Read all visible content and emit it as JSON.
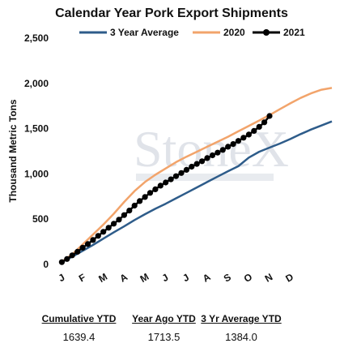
{
  "chart_data": {
    "type": "line",
    "title": "Calendar Year Pork Export Shipments",
    "ylabel": "Thousand Metric Tons",
    "xlabel": "",
    "ylim": [
      0,
      2500
    ],
    "yticks": [
      "0",
      "500",
      "1,000",
      "1,500",
      "2,000",
      "2,500"
    ],
    "ytick_values": [
      0,
      500,
      1000,
      1500,
      2000,
      2500
    ],
    "month_labels": [
      "J",
      "F",
      "M",
      "A",
      "M",
      "J",
      "J",
      "A",
      "S",
      "O",
      "N",
      "D"
    ],
    "legend_position": "top",
    "grid": false,
    "watermark": "StoneX",
    "series": [
      {
        "name": "3 Year Average",
        "color": "#2e5c8a",
        "marker": "none",
        "x": [
          1,
          3,
          5,
          7,
          9,
          11,
          13,
          15,
          17,
          19,
          21,
          23,
          25,
          27,
          29,
          31,
          33,
          35,
          37,
          39,
          41,
          43,
          45,
          47,
          49,
          51,
          53
        ],
        "y": [
          25,
          85,
          150,
          215,
          285,
          355,
          420,
          490,
          555,
          615,
          670,
          730,
          790,
          850,
          910,
          970,
          1030,
          1085,
          1180,
          1245,
          1290,
          1335,
          1385,
          1440,
          1490,
          1535,
          1580
        ]
      },
      {
        "name": "2020",
        "color": "#f2a46b",
        "marker": "none",
        "x": [
          1,
          3,
          5,
          7,
          9,
          11,
          13,
          15,
          17,
          19,
          21,
          23,
          25,
          27,
          29,
          31,
          33,
          35,
          37,
          39,
          41,
          43,
          45,
          47,
          49,
          51,
          53
        ],
        "y": [
          30,
          110,
          220,
          330,
          440,
          560,
          690,
          810,
          910,
          990,
          1060,
          1130,
          1190,
          1245,
          1300,
          1355,
          1410,
          1470,
          1530,
          1590,
          1650,
          1715,
          1780,
          1840,
          1890,
          1930,
          1950
        ]
      },
      {
        "name": "2021",
        "color": "#000000",
        "marker": "circle",
        "x": [
          1,
          2,
          3,
          4,
          5,
          6,
          7,
          8,
          9,
          10,
          11,
          12,
          13,
          14,
          15,
          16,
          17,
          18,
          19,
          20,
          21,
          22,
          23,
          24,
          25,
          26,
          27,
          28,
          29,
          30,
          31,
          32,
          33,
          34,
          35,
          36,
          37,
          38,
          39,
          40,
          41
        ],
        "y": [
          25,
          60,
          100,
          140,
          185,
          225,
          270,
          315,
          360,
          405,
          450,
          495,
          545,
          595,
          650,
          700,
          745,
          790,
          830,
          870,
          905,
          940,
          975,
          1010,
          1045,
          1080,
          1110,
          1140,
          1175,
          1205,
          1235,
          1265,
          1300,
          1330,
          1365,
          1400,
          1435,
          1475,
          1520,
          1570,
          1639.4
        ]
      }
    ]
  },
  "stats": [
    {
      "label": "Cumulative YTD",
      "value": "1639.4"
    },
    {
      "label": "Year Ago YTD",
      "value": "1713.5"
    },
    {
      "label": "3 Yr Average YTD",
      "value": "1384.0"
    }
  ]
}
